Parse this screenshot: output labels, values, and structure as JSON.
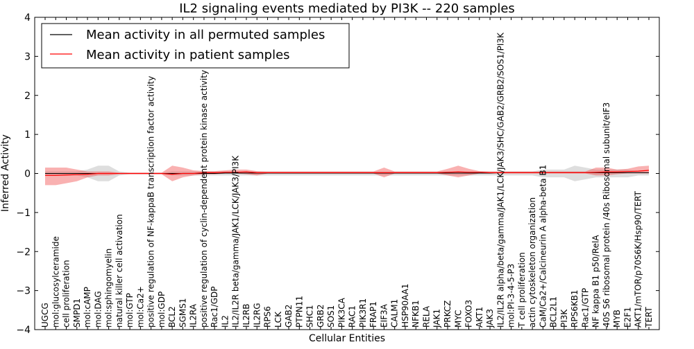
{
  "chart_data": {
    "type": "line",
    "title": "IL2 signaling events mediated by PI3K -- 220 samples",
    "xlabel": "Cellular Entities",
    "ylabel": "Inferred Activity",
    "ylim": [
      -4,
      4
    ],
    "yticks": [
      -4,
      -3,
      -2,
      -1,
      0,
      1,
      2,
      3,
      4
    ],
    "ytick_labels": [
      "−4",
      "−3",
      "−2",
      "−1",
      "0",
      "1",
      "2",
      "3",
      "4"
    ],
    "legend": {
      "placement": "top-left",
      "entries": [
        {
          "label": "Mean activity in all permuted samples",
          "color": "#000000"
        },
        {
          "label": "Mean activity in patient samples",
          "color": "#ff0000"
        }
      ]
    },
    "categories": [
      "UGCG",
      "mol:glucosylceramide",
      "cell proliferation",
      "SMPD1",
      "mol:cAMP",
      "mol:DAG",
      "mol:sphingomyelin",
      "natural killer cell activation",
      "mol:GTP",
      "mol:Ca2+",
      "positive regulation of NF-kappaB transcription factor activity",
      "mol:GDP",
      "BCL2",
      "SGMS1",
      "IL2RA",
      "positive regulation of cyclin-dependent protein kinase activity",
      "Rac1/GDP",
      "IL2",
      "IL2/IL2R beta/gamma/JAK1/LCK/JAK3/PI3K",
      "IL2RB",
      "IL2RG",
      "RPS6",
      "LCK",
      "GAB2",
      "PTPN11",
      "SHC1",
      "GRB2",
      "SOS1",
      "PIK3CA",
      "RAC1",
      "PIK3R1",
      "FRAP1",
      "EIF3A",
      "CALM1",
      "HSP90AA1",
      "NFKB1",
      "RELA",
      "JAK1",
      "PRKCZ",
      "MYC",
      "FOXO3",
      "AKT1",
      "JAK3",
      "IL2/IL2R alpha/beta/gamma/JAK1/LCK/JAK3/SHC/GAB2/GRB2/SOS1/PI3K",
      "mol:PI-3-4-5-P3",
      "T cell proliferation",
      "actin cytoskeleton organization",
      "CaM/Ca2+/Calcineurin A alpha-beta B1",
      "BCL2L1",
      "PI3K",
      "RPS6KB1",
      "Rac1/GTP",
      "NF kappa B1 p50/RelA",
      "40S S6 ribosomal protein /40s Ribosomal subunit/eIF3",
      "MYB",
      "E2F1",
      "AKT1/mTOR/p70S6K/Hsp90/TERT",
      "TERT"
    ],
    "series": [
      {
        "name": "Mean activity in all permuted samples",
        "color": "#000000",
        "values": [
          0,
          0,
          0,
          0,
          0,
          0,
          0,
          0,
          0,
          0,
          0,
          0,
          0,
          0,
          0,
          0,
          0,
          0.01,
          0.01,
          0.01,
          0.01,
          0.01,
          0.01,
          0.01,
          0.01,
          0.01,
          0.01,
          0.01,
          0.01,
          0.01,
          0.01,
          0.01,
          0.01,
          0.01,
          0.01,
          0.01,
          0.01,
          0.01,
          0.01,
          0.01,
          0.01,
          0.01,
          0.01,
          0.02,
          0.02,
          0.02,
          0.02,
          0.02,
          0.02,
          0.02,
          0.02,
          0.02,
          0.02,
          0.02,
          0.02,
          0.02,
          0.02,
          0.02
        ],
        "lower": [
          -0.05,
          -0.05,
          -0.05,
          -0.05,
          -0.1,
          -0.2,
          -0.2,
          -0.05,
          -0.02,
          -0.02,
          -0.02,
          -0.02,
          -0.05,
          -0.05,
          -0.05,
          -0.05,
          -0.05,
          -0.05,
          -0.05,
          -0.05,
          -0.05,
          -0.05,
          -0.05,
          -0.05,
          -0.05,
          -0.05,
          -0.05,
          -0.05,
          -0.05,
          -0.05,
          -0.05,
          -0.05,
          -0.05,
          -0.05,
          -0.05,
          -0.05,
          -0.05,
          -0.05,
          -0.05,
          -0.05,
          -0.05,
          -0.05,
          -0.05,
          -0.05,
          -0.05,
          -0.05,
          -0.05,
          -0.1,
          -0.1,
          -0.1,
          -0.2,
          -0.15,
          -0.1,
          -0.1,
          -0.1,
          -0.1,
          -0.05,
          -0.05
        ],
        "upper": [
          0.05,
          0.05,
          0.05,
          0.05,
          0.1,
          0.2,
          0.2,
          0.05,
          0.02,
          0.02,
          0.02,
          0.02,
          0.05,
          0.05,
          0.05,
          0.05,
          0.05,
          0.05,
          0.05,
          0.05,
          0.05,
          0.05,
          0.05,
          0.05,
          0.05,
          0.05,
          0.05,
          0.05,
          0.05,
          0.05,
          0.05,
          0.05,
          0.05,
          0.05,
          0.05,
          0.05,
          0.05,
          0.05,
          0.05,
          0.05,
          0.05,
          0.05,
          0.05,
          0.05,
          0.05,
          0.05,
          0.05,
          0.1,
          0.1,
          0.1,
          0.2,
          0.15,
          0.1,
          0.1,
          0.1,
          0.1,
          0.05,
          0.05
        ]
      },
      {
        "name": "Mean activity in patient samples",
        "color": "#ff0000",
        "values": [
          -0.05,
          -0.05,
          -0.04,
          -0.03,
          -0.02,
          0,
          0,
          0,
          0,
          0,
          0,
          0,
          -0.02,
          0,
          0,
          0.02,
          0.02,
          0.03,
          0.03,
          0.04,
          0.02,
          0.02,
          0.02,
          0.02,
          0.02,
          0.02,
          0.02,
          0.02,
          0.02,
          0.02,
          0.02,
          0.02,
          0.02,
          0.02,
          0.02,
          0.02,
          0.02,
          0.02,
          0.03,
          0.04,
          0.03,
          0.03,
          0.02,
          0.02,
          0.02,
          0.02,
          0.02,
          0.02,
          0.02,
          0.02,
          0.02,
          0.02,
          0.03,
          0.04,
          0.04,
          0.05,
          0.06,
          0.08
        ],
        "lower": [
          -0.3,
          -0.3,
          -0.25,
          -0.2,
          -0.1,
          -0.05,
          -0.05,
          -0.02,
          -0.02,
          -0.02,
          -0.02,
          -0.02,
          -0.2,
          -0.1,
          -0.05,
          -0.02,
          -0.02,
          0,
          0,
          -0.02,
          -0.05,
          0,
          0,
          0,
          0,
          0,
          0,
          0,
          0,
          0,
          0,
          0,
          -0.1,
          0,
          0,
          0,
          0,
          0,
          -0.05,
          -0.1,
          -0.05,
          0,
          0,
          0,
          0,
          0,
          0,
          0,
          0,
          0,
          0,
          0,
          -0.05,
          -0.05,
          -0.02,
          0,
          0,
          0
        ],
        "upper": [
          0.15,
          0.15,
          0.15,
          0.1,
          0.05,
          0.05,
          0.05,
          0.02,
          0.02,
          0.02,
          0.02,
          0.02,
          0.2,
          0.15,
          0.08,
          0.06,
          0.06,
          0.08,
          0.1,
          0.1,
          0.06,
          0.05,
          0.05,
          0.05,
          0.05,
          0.05,
          0.05,
          0.05,
          0.05,
          0.05,
          0.05,
          0.05,
          0.15,
          0.05,
          0.05,
          0.05,
          0.05,
          0.05,
          0.12,
          0.2,
          0.12,
          0.06,
          0.05,
          0.05,
          0.05,
          0.05,
          0.05,
          0.05,
          0.05,
          0.05,
          0.05,
          0.05,
          0.15,
          0.15,
          0.1,
          0.12,
          0.18,
          0.2
        ]
      }
    ]
  }
}
